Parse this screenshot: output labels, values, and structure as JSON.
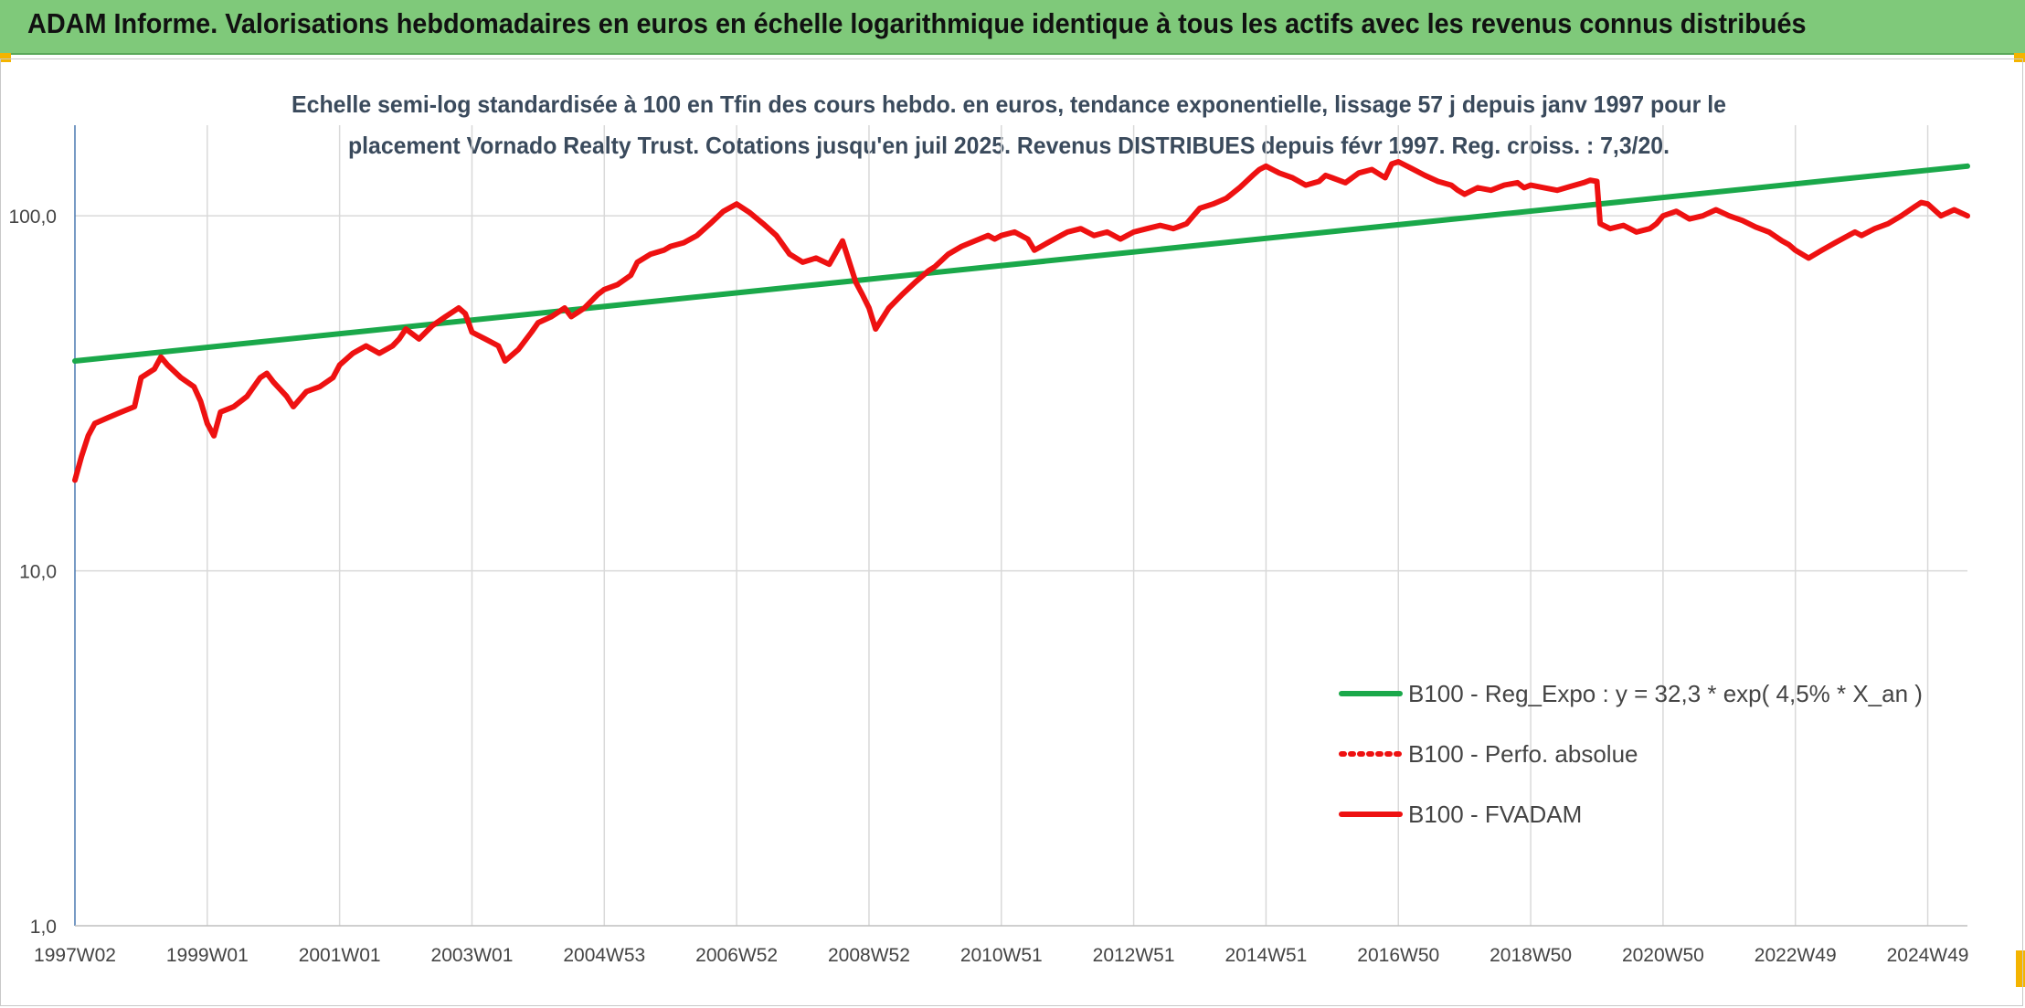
{
  "header": {
    "title": "ADAM Informe. Valorisations hebdomadaires en euros en échelle logarithmique identique à tous les actifs avec les revenus connus distribués"
  },
  "chart_data": {
    "type": "line",
    "title_lines": [
      "Echelle semi-log standardisée à 100 en Tfin des cours hebdo. en euros, tendance exponentielle, lissage 57 j depuis janv 1997 pour le",
      "placement Vornado Realty Trust. Cotations jusqu'en juil 2025. Revenus DISTRIBUES depuis févr 1997. Reg. croiss. : 7,3/20."
    ],
    "y_scale": "log",
    "ylim": [
      1,
      180
    ],
    "xlim": [
      1997.0,
      2025.6
    ],
    "y_ticks": [
      {
        "value": 1,
        "label": "1,0"
      },
      {
        "value": 10,
        "label": "10,0"
      },
      {
        "value": 100,
        "label": "100,0"
      }
    ],
    "x_ticks": [
      {
        "value": 1997.0,
        "label": "1997W02"
      },
      {
        "value": 1999.0,
        "label": "1999W01"
      },
      {
        "value": 2001.0,
        "label": "2001W01"
      },
      {
        "value": 2003.0,
        "label": "2003W01"
      },
      {
        "value": 2005.0,
        "label": "2004W53"
      },
      {
        "value": 2007.0,
        "label": "2006W52"
      },
      {
        "value": 2009.0,
        "label": "2008W52"
      },
      {
        "value": 2011.0,
        "label": "2010W51"
      },
      {
        "value": 2013.0,
        "label": "2012W51"
      },
      {
        "value": 2015.0,
        "label": "2014W51"
      },
      {
        "value": 2017.0,
        "label": "2016W50"
      },
      {
        "value": 2019.0,
        "label": "2018W50"
      },
      {
        "value": 2021.0,
        "label": "2020W50"
      },
      {
        "value": 2023.0,
        "label": "2022W49"
      },
      {
        "value": 2025.0,
        "label": "2024W49"
      }
    ],
    "grid": true,
    "legend_position": "bottom-right",
    "series": [
      {
        "name": "B100 - Reg_Expo : y = 32,3 * exp( 4,5% *  X_an )",
        "color": "#1aa84a",
        "style": "solid",
        "points": [
          [
            1997.0,
            39.0
          ],
          [
            2025.6,
            138.0
          ]
        ]
      },
      {
        "name": "B100 - Perfo. absolue",
        "color": "#ee1111",
        "style": "dotted",
        "points": []
      },
      {
        "name": "B100 - FVADAM",
        "color": "#ee1111",
        "style": "solid",
        "points": [
          [
            1997.0,
            18
          ],
          [
            1997.1,
            21
          ],
          [
            1997.2,
            24
          ],
          [
            1997.3,
            26
          ],
          [
            1997.5,
            27
          ],
          [
            1997.7,
            28
          ],
          [
            1997.9,
            29
          ],
          [
            1998.0,
            35
          ],
          [
            1998.2,
            37
          ],
          [
            1998.3,
            40
          ],
          [
            1998.4,
            38
          ],
          [
            1998.6,
            35
          ],
          [
            1998.8,
            33
          ],
          [
            1998.9,
            30
          ],
          [
            1999.0,
            26
          ],
          [
            1999.1,
            24
          ],
          [
            1999.2,
            28
          ],
          [
            1999.4,
            29
          ],
          [
            1999.6,
            31
          ],
          [
            1999.8,
            35
          ],
          [
            1999.9,
            36
          ],
          [
            2000.0,
            34
          ],
          [
            2000.2,
            31
          ],
          [
            2000.3,
            29
          ],
          [
            2000.5,
            32
          ],
          [
            2000.7,
            33
          ],
          [
            2000.9,
            35
          ],
          [
            2001.0,
            38
          ],
          [
            2001.2,
            41
          ],
          [
            2001.4,
            43
          ],
          [
            2001.6,
            41
          ],
          [
            2001.8,
            43
          ],
          [
            2001.9,
            45
          ],
          [
            2002.0,
            48
          ],
          [
            2002.2,
            45
          ],
          [
            2002.4,
            49
          ],
          [
            2002.6,
            52
          ],
          [
            2002.8,
            55
          ],
          [
            2002.9,
            53
          ],
          [
            2003.0,
            47
          ],
          [
            2003.2,
            45
          ],
          [
            2003.4,
            43
          ],
          [
            2003.5,
            39
          ],
          [
            2003.7,
            42
          ],
          [
            2003.9,
            47
          ],
          [
            2004.0,
            50
          ],
          [
            2004.2,
            52
          ],
          [
            2004.4,
            55
          ],
          [
            2004.5,
            52
          ],
          [
            2004.7,
            55
          ],
          [
            2004.9,
            60
          ],
          [
            2005.0,
            62
          ],
          [
            2005.2,
            64
          ],
          [
            2005.4,
            68
          ],
          [
            2005.5,
            74
          ],
          [
            2005.7,
            78
          ],
          [
            2005.9,
            80
          ],
          [
            2006.0,
            82
          ],
          [
            2006.2,
            84
          ],
          [
            2006.4,
            88
          ],
          [
            2006.6,
            95
          ],
          [
            2006.8,
            103
          ],
          [
            2007.0,
            108
          ],
          [
            2007.2,
            102
          ],
          [
            2007.4,
            95
          ],
          [
            2007.6,
            88
          ],
          [
            2007.8,
            78
          ],
          [
            2008.0,
            74
          ],
          [
            2008.2,
            76
          ],
          [
            2008.4,
            73
          ],
          [
            2008.6,
            85
          ],
          [
            2008.8,
            65
          ],
          [
            2008.9,
            60
          ],
          [
            2009.0,
            55
          ],
          [
            2009.1,
            48
          ],
          [
            2009.3,
            55
          ],
          [
            2009.5,
            60
          ],
          [
            2009.7,
            65
          ],
          [
            2009.9,
            70
          ],
          [
            2010.0,
            72
          ],
          [
            2010.2,
            78
          ],
          [
            2010.4,
            82
          ],
          [
            2010.6,
            85
          ],
          [
            2010.8,
            88
          ],
          [
            2010.9,
            86
          ],
          [
            2011.0,
            88
          ],
          [
            2011.2,
            90
          ],
          [
            2011.4,
            86
          ],
          [
            2011.5,
            80
          ],
          [
            2011.7,
            84
          ],
          [
            2011.9,
            88
          ],
          [
            2012.0,
            90
          ],
          [
            2012.2,
            92
          ],
          [
            2012.4,
            88
          ],
          [
            2012.6,
            90
          ],
          [
            2012.8,
            86
          ],
          [
            2012.9,
            88
          ],
          [
            2013.0,
            90
          ],
          [
            2013.2,
            92
          ],
          [
            2013.4,
            94
          ],
          [
            2013.6,
            92
          ],
          [
            2013.8,
            95
          ],
          [
            2013.9,
            100
          ],
          [
            2014.0,
            105
          ],
          [
            2014.2,
            108
          ],
          [
            2014.4,
            112
          ],
          [
            2014.6,
            120
          ],
          [
            2014.8,
            130
          ],
          [
            2014.9,
            135
          ],
          [
            2015.0,
            138
          ],
          [
            2015.2,
            132
          ],
          [
            2015.4,
            128
          ],
          [
            2015.6,
            122
          ],
          [
            2015.8,
            125
          ],
          [
            2015.9,
            130
          ],
          [
            2016.0,
            128
          ],
          [
            2016.2,
            124
          ],
          [
            2016.4,
            132
          ],
          [
            2016.6,
            135
          ],
          [
            2016.8,
            128
          ],
          [
            2016.9,
            140
          ],
          [
            2017.0,
            142
          ],
          [
            2017.2,
            136
          ],
          [
            2017.4,
            130
          ],
          [
            2017.6,
            125
          ],
          [
            2017.8,
            122
          ],
          [
            2017.9,
            118
          ],
          [
            2018.0,
            115
          ],
          [
            2018.2,
            120
          ],
          [
            2018.4,
            118
          ],
          [
            2018.6,
            122
          ],
          [
            2018.8,
            124
          ],
          [
            2018.9,
            120
          ],
          [
            2019.0,
            122
          ],
          [
            2019.2,
            120
          ],
          [
            2019.4,
            118
          ],
          [
            2019.6,
            121
          ],
          [
            2019.8,
            124
          ],
          [
            2019.9,
            126
          ],
          [
            2020.0,
            125
          ],
          [
            2020.05,
            95
          ],
          [
            2020.2,
            92
          ],
          [
            2020.4,
            94
          ],
          [
            2020.6,
            90
          ],
          [
            2020.8,
            92
          ],
          [
            2020.9,
            95
          ],
          [
            2021.0,
            100
          ],
          [
            2021.2,
            103
          ],
          [
            2021.4,
            98
          ],
          [
            2021.6,
            100
          ],
          [
            2021.8,
            104
          ],
          [
            2021.9,
            102
          ],
          [
            2022.0,
            100
          ],
          [
            2022.2,
            97
          ],
          [
            2022.4,
            93
          ],
          [
            2022.6,
            90
          ],
          [
            2022.8,
            85
          ],
          [
            2022.9,
            83
          ],
          [
            2023.0,
            80
          ],
          [
            2023.2,
            76
          ],
          [
            2023.4,
            80
          ],
          [
            2023.6,
            84
          ],
          [
            2023.8,
            88
          ],
          [
            2023.9,
            90
          ],
          [
            2024.0,
            88
          ],
          [
            2024.2,
            92
          ],
          [
            2024.4,
            95
          ],
          [
            2024.6,
            100
          ],
          [
            2024.8,
            106
          ],
          [
            2024.9,
            109
          ],
          [
            2025.0,
            108
          ],
          [
            2025.2,
            100
          ],
          [
            2025.4,
            104
          ],
          [
            2025.6,
            100
          ]
        ]
      }
    ]
  }
}
